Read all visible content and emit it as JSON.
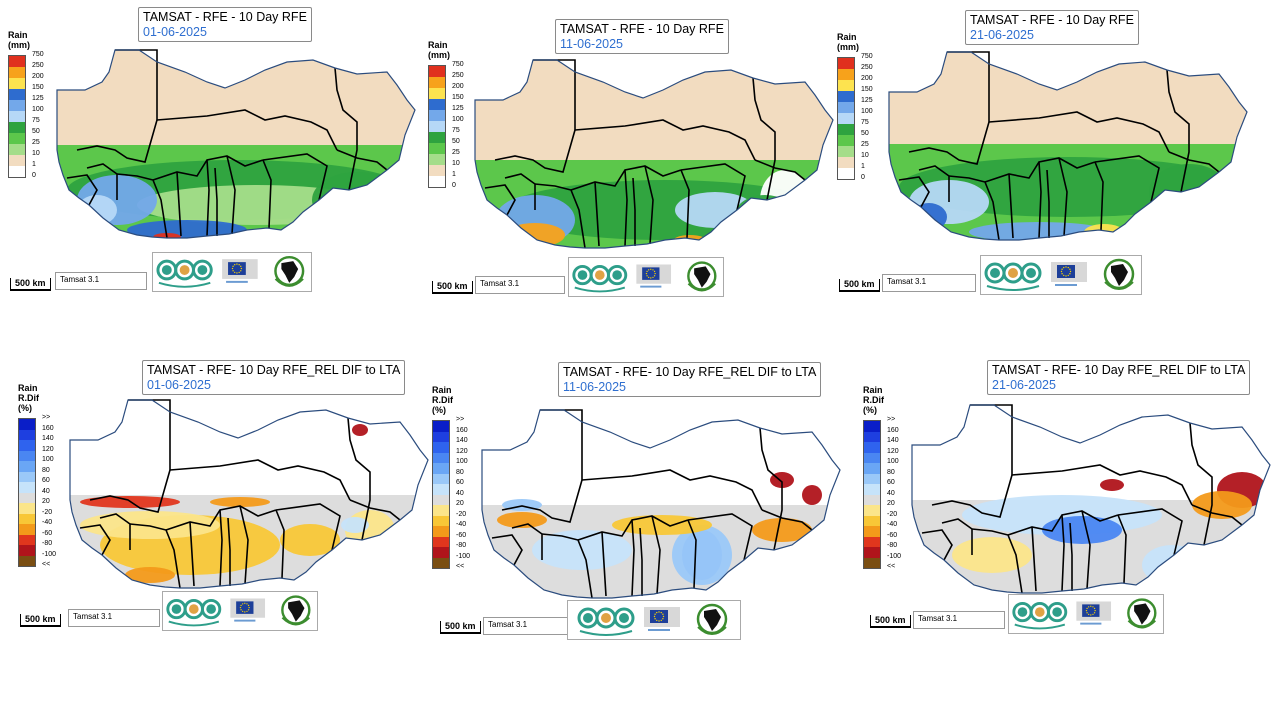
{
  "panels": [
    {
      "title": "TAMSAT - RFE - 10 Day RFE",
      "date": "01-06-2025",
      "kind": "rfe"
    },
    {
      "title": "TAMSAT - RFE - 10 Day RFE",
      "date": "11-06-2025",
      "kind": "rfe"
    },
    {
      "title": "TAMSAT - RFE - 10 Day RFE",
      "date": "21-06-2025",
      "kind": "rfe"
    },
    {
      "title": "TAMSAT - RFE- 10 Day RFE_REL DIF to LTA",
      "date": "01-06-2025",
      "kind": "dif"
    },
    {
      "title": "TAMSAT - RFE- 10 Day RFE_REL DIF to LTA",
      "date": "11-06-2025",
      "kind": "dif"
    },
    {
      "title": "TAMSAT - RFE- 10 Day RFE_REL DIF to LTA",
      "date": "21-06-2025",
      "kind": "dif"
    }
  ],
  "rfe_legend": {
    "header_line1": "Rain",
    "header_line2": "(mm)",
    "labels": [
      "750",
      "250",
      "200",
      "150",
      "125",
      "100",
      "75",
      "50",
      "25",
      "10",
      "1",
      "0"
    ],
    "colors": [
      "#e0301e",
      "#f7a21b",
      "#fde34f",
      "#2e6ccf",
      "#73a8ea",
      "#b6d8f7",
      "#2ea33f",
      "#5cc74b",
      "#a5dd8a",
      "#f2dcc0",
      "#ffffff"
    ]
  },
  "dif_legend": {
    "header_line1": "Rain",
    "header_line2": "R.Dif",
    "header_line3": "(%)",
    "labels": [
      ">>",
      "160",
      "140",
      "120",
      "100",
      "80",
      "60",
      "40",
      "20",
      "-20",
      "-40",
      "-60",
      "-80",
      "-100",
      "<<"
    ],
    "colors": [
      "#0a1ec8",
      "#1e3fe0",
      "#2f63ee",
      "#4a86f2",
      "#6aa6f5",
      "#9ac8f8",
      "#c6e3fa",
      "#dddddd",
      "#fbe58a",
      "#f8c737",
      "#f39a1a",
      "#e0361d",
      "#b0141b",
      "#7a4e12"
    ]
  },
  "scalebar_label": "500 km",
  "source_label": "Tamsat 3.1",
  "colors": {
    "boundary": "#000000",
    "coast": "#2b4c7e",
    "sahara": "#f2dcc0",
    "nodata_grey": "#dddddd"
  }
}
